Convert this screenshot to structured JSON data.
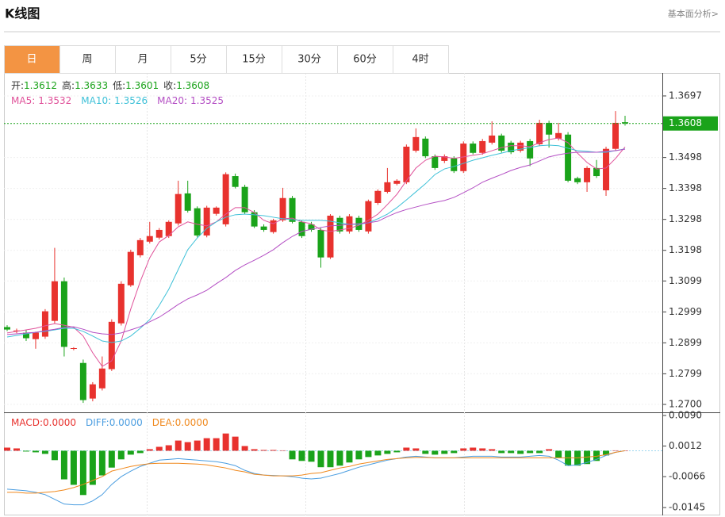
{
  "header": {
    "title": "K线图",
    "link": "基本面分析>"
  },
  "tabs": [
    "日",
    "周",
    "月",
    "5分",
    "15分",
    "30分",
    "60分",
    "4时"
  ],
  "active_tab": 0,
  "chart_data": [
    {
      "type": "candlestick",
      "up_color": "#e8322e",
      "down_color": "#1aa31a",
      "info_labels": [
        "开:",
        "高:",
        "低:",
        "收:"
      ],
      "ylim": [
        1.2677,
        1.3761
      ],
      "yticks": [
        1.3697,
        1.3498,
        1.3398,
        1.3298,
        1.3198,
        1.3099,
        1.2999,
        1.2899,
        1.2799,
        {
          "value": 1.27,
          "label": "1.2700"
        }
      ],
      "ohlc": [
        [
          1.295,
          1.2956,
          1.2937,
          1.2942
        ],
        [
          1.2937,
          1.2945,
          1.293,
          1.2939
        ],
        [
          1.2932,
          1.294,
          1.2905,
          1.2914
        ],
        [
          1.2911,
          1.2935,
          1.288,
          1.2932
        ],
        [
          1.2919,
          1.3008,
          1.2912,
          1.3001
        ],
        [
          1.297,
          1.3206,
          1.2962,
          1.3098
        ],
        [
          1.3098,
          1.311,
          1.2855,
          1.2886
        ],
        [
          1.288,
          1.2885,
          1.2875,
          1.2882
        ],
        [
          1.2834,
          1.2845,
          1.2705,
          1.2714
        ],
        [
          1.2719,
          1.2772,
          1.271,
          1.2765
        ],
        [
          1.2752,
          1.2855,
          1.2745,
          1.2816
        ],
        [
          1.2814,
          1.2975,
          1.2808,
          1.2967
        ],
        [
          1.2962,
          1.3098,
          1.2955,
          1.309
        ],
        [
          1.3085,
          1.32,
          1.308,
          1.3193
        ],
        [
          1.3182,
          1.3238,
          1.3175,
          1.3231
        ],
        [
          1.3226,
          1.329,
          1.322,
          1.3244
        ],
        [
          1.3239,
          1.327,
          1.3233,
          1.3264
        ],
        [
          1.3244,
          1.3295,
          1.3238,
          1.329
        ],
        [
          1.3285,
          1.3423,
          1.3278,
          1.338
        ],
        [
          1.3382,
          1.3423,
          1.332,
          1.3326
        ],
        [
          1.3334,
          1.334,
          1.324,
          1.3246
        ],
        [
          1.3246,
          1.3342,
          1.324,
          1.3336
        ],
        [
          1.3316,
          1.334,
          1.331,
          1.3336
        ],
        [
          1.3282,
          1.345,
          1.3275,
          1.3444
        ],
        [
          1.3438,
          1.3446,
          1.3398,
          1.3403
        ],
        [
          1.3403,
          1.341,
          1.3316,
          1.3321
        ],
        [
          1.3321,
          1.3328,
          1.327,
          1.3275
        ],
        [
          1.3275,
          1.3282,
          1.3258,
          1.3264
        ],
        [
          1.3257,
          1.33,
          1.3252,
          1.3295
        ],
        [
          1.3295,
          1.34,
          1.329,
          1.3367
        ],
        [
          1.3367,
          1.3374,
          1.3285,
          1.329
        ],
        [
          1.329,
          1.3296,
          1.3238,
          1.3244
        ],
        [
          1.3282,
          1.329,
          1.3258,
          1.3264
        ],
        [
          1.3264,
          1.327,
          1.3142,
          1.3175
        ],
        [
          1.3175,
          1.3315,
          1.317,
          1.331
        ],
        [
          1.3303,
          1.331,
          1.3252,
          1.3259
        ],
        [
          1.3259,
          1.3315,
          1.3252,
          1.3308
        ],
        [
          1.3303,
          1.331,
          1.3258,
          1.3264
        ],
        [
          1.3259,
          1.3362,
          1.3252,
          1.3357
        ],
        [
          1.3351,
          1.3395,
          1.3345,
          1.339
        ],
        [
          1.3387,
          1.3464,
          1.3382,
          1.3418
        ],
        [
          1.3413,
          1.3428,
          1.3408,
          1.3423
        ],
        [
          1.3418,
          1.354,
          1.3412,
          1.3533
        ],
        [
          1.352,
          1.3592,
          1.3514,
          1.3564
        ],
        [
          1.3559,
          1.3566,
          1.3496,
          1.3502
        ],
        [
          1.3502,
          1.3508,
          1.3458,
          1.3464
        ],
        [
          1.3487,
          1.3508,
          1.348,
          1.3502
        ],
        [
          1.3495,
          1.3502,
          1.3448,
          1.3454
        ],
        [
          1.3454,
          1.355,
          1.3448,
          1.3543
        ],
        [
          1.3543,
          1.355,
          1.3508,
          1.3513
        ],
        [
          1.3513,
          1.3558,
          1.3507,
          1.3551
        ],
        [
          1.3546,
          1.3615,
          1.354,
          1.3569
        ],
        [
          1.3569,
          1.3575,
          1.3514,
          1.352
        ],
        [
          1.3546,
          1.3552,
          1.3509,
          1.3515
        ],
        [
          1.352,
          1.3552,
          1.3514,
          1.3546
        ],
        [
          1.3551,
          1.3558,
          1.347,
          1.3495
        ],
        [
          1.3541,
          1.362,
          1.3535,
          1.361
        ],
        [
          1.361,
          1.3617,
          1.353,
          1.3572
        ],
        [
          1.3559,
          1.361,
          1.3553,
          1.3577
        ],
        [
          1.3572,
          1.358,
          1.3418,
          1.3423
        ],
        [
          1.3431,
          1.3436,
          1.3412,
          1.3418
        ],
        [
          1.3418,
          1.347,
          1.3387,
          1.3464
        ],
        [
          1.3464,
          1.349,
          1.3432,
          1.3438
        ],
        [
          1.3392,
          1.3533,
          1.3374,
          1.3526
        ],
        [
          1.3526,
          1.3648,
          1.352,
          1.361
        ],
        [
          1.3612,
          1.3633,
          1.3601,
          1.3608
        ]
      ],
      "ma": [
        {
          "name": "MA5:",
          "color": "#e0529a",
          "values": [
            1.2931,
            1.2936,
            1.2941,
            1.2946,
            1.2954,
            1.2961,
            1.2956,
            1.2949,
            1.2921,
            1.2867,
            1.2823,
            1.2841,
            1.2905,
            1.3008,
            1.3097,
            1.3174,
            1.3225,
            1.3246,
            1.3274,
            1.329,
            1.3282,
            1.3277,
            1.329,
            1.3315,
            1.3336,
            1.3336,
            1.332,
            1.3295,
            1.3284,
            1.33,
            1.3302,
            1.329,
            1.3284,
            1.3264,
            1.3259,
            1.3264,
            1.3269,
            1.3279,
            1.3295,
            1.3315,
            1.3346,
            1.3379,
            1.3423,
            1.3464,
            1.3489,
            1.3502,
            1.35,
            1.3495,
            1.35,
            1.3505,
            1.351,
            1.352,
            1.353,
            1.3536,
            1.3536,
            1.3533,
            1.3546,
            1.3556,
            1.3561,
            1.3546,
            1.3512,
            1.3482,
            1.3461,
            1.3464,
            1.3495,
            1.3532
          ]
        },
        {
          "name": "MA10:",
          "color": "#3fc1d8",
          "values": [
            1.2918,
            1.2923,
            1.2928,
            1.2933,
            1.2936,
            1.2941,
            1.2946,
            1.2946,
            1.2936,
            1.2921,
            1.2905,
            1.29,
            1.2905,
            1.2921,
            1.2946,
            1.2974,
            1.302,
            1.3072,
            1.3136,
            1.32,
            1.3238,
            1.3269,
            1.329,
            1.3305,
            1.3313,
            1.3315,
            1.3313,
            1.331,
            1.3305,
            1.33,
            1.3297,
            1.3295,
            1.3295,
            1.3295,
            1.3292,
            1.3287,
            1.3282,
            1.3282,
            1.3287,
            1.33,
            1.3315,
            1.3336,
            1.3361,
            1.3387,
            1.3413,
            1.3443,
            1.3461,
            1.3469,
            1.3479,
            1.3489,
            1.3497,
            1.3505,
            1.3512,
            1.352,
            1.3525,
            1.353,
            1.3536,
            1.3538,
            1.3536,
            1.3528,
            1.352,
            1.3518,
            1.3515,
            1.3515,
            1.352,
            1.3526
          ]
        },
        {
          "name": "MA20:",
          "color": "#b44fc4",
          "values": [
            1.2926,
            1.2928,
            1.2931,
            1.2933,
            1.2938,
            1.2943,
            1.2949,
            1.2951,
            1.2943,
            1.2933,
            1.2928,
            1.2926,
            1.2931,
            1.2941,
            1.2951,
            1.2967,
            1.2982,
            1.3002,
            1.3023,
            1.3041,
            1.3054,
            1.3069,
            1.309,
            1.311,
            1.3133,
            1.3151,
            1.3166,
            1.3182,
            1.32,
            1.3223,
            1.3243,
            1.3259,
            1.3266,
            1.3272,
            1.3277,
            1.3279,
            1.3282,
            1.3284,
            1.3287,
            1.3292,
            1.3307,
            1.332,
            1.333,
            1.3338,
            1.3346,
            1.3353,
            1.3359,
            1.3369,
            1.3384,
            1.34,
            1.3418,
            1.3431,
            1.3443,
            1.3456,
            1.3466,
            1.3474,
            1.3487,
            1.35,
            1.3507,
            1.3512,
            1.3515,
            1.3515,
            1.3515,
            1.3518,
            1.352,
            1.3525
          ]
        }
      ]
    },
    {
      "type": "macd",
      "up_color": "#e8322e",
      "down_color": "#1aa31a",
      "ylim": [
        -0.0165,
        0.0098
      ],
      "yticks": [
        {
          "value": 0.009,
          "label": "0.0090"
        },
        0.0012,
        -0.0066,
        -0.0145
      ],
      "series": [
        {
          "name": "MACD:",
          "value_label": "0.0000",
          "color": "#e8322e",
          "values": [
            0.0008,
            0.0006,
            -0.0002,
            -0.0004,
            -0.0008,
            -0.0024,
            -0.0073,
            -0.0087,
            -0.0113,
            -0.0087,
            -0.0063,
            -0.0043,
            -0.0022,
            -0.001,
            -0.0006,
            0.0004,
            0.001,
            0.0014,
            0.0026,
            0.0022,
            0.0026,
            0.0032,
            0.0032,
            0.0044,
            0.0036,
            0.0012,
            0.0004,
            0.0002,
            0.0002,
            0.0001,
            -0.0022,
            -0.0026,
            -0.0028,
            -0.0042,
            -0.0042,
            -0.0038,
            -0.003,
            -0.0022,
            -0.0016,
            -0.0012,
            -0.0008,
            -0.0004,
            0.0008,
            0.0006,
            -0.0008,
            -0.001,
            -0.0008,
            -0.0006,
            0.0006,
            0.0008,
            0.0006,
            0.0004,
            -0.0006,
            -0.0006,
            -0.0008,
            -0.0006,
            -0.0006,
            0.0004,
            -0.0018,
            -0.0038,
            -0.0038,
            -0.0034,
            -0.0026,
            -0.0012,
            0.0001,
            0
          ]
        },
        {
          "name": "DIFF:",
          "value_label": "0.0000",
          "color": "#4a9de0",
          "values": [
            -0.0098,
            -0.01,
            -0.0102,
            -0.0106,
            -0.0112,
            -0.0124,
            -0.0136,
            -0.0138,
            -0.0138,
            -0.0128,
            -0.0112,
            -0.0086,
            -0.0066,
            -0.0052,
            -0.004,
            -0.0032,
            -0.0024,
            -0.0022,
            -0.002,
            -0.0022,
            -0.0024,
            -0.0026,
            -0.0028,
            -0.0032,
            -0.0038,
            -0.005,
            -0.0058,
            -0.0062,
            -0.0063,
            -0.0064,
            -0.0066,
            -0.007,
            -0.0072,
            -0.007,
            -0.0064,
            -0.0058,
            -0.005,
            -0.0042,
            -0.0036,
            -0.003,
            -0.0024,
            -0.002,
            -0.0016,
            -0.0014,
            -0.0016,
            -0.0018,
            -0.0018,
            -0.0018,
            -0.0016,
            -0.0014,
            -0.0014,
            -0.0014,
            -0.0016,
            -0.0016,
            -0.0016,
            -0.0014,
            -0.0012,
            -0.0014,
            -0.0024,
            -0.0038,
            -0.0036,
            -0.003,
            -0.0022,
            -0.0012,
            -0.0004,
            0
          ]
        },
        {
          "name": "DEA:",
          "value_label": "0.0000",
          "color": "#f0891e",
          "values": [
            -0.0106,
            -0.0106,
            -0.0108,
            -0.0108,
            -0.0106,
            -0.0104,
            -0.01,
            -0.0094,
            -0.0086,
            -0.0076,
            -0.0066,
            -0.0052,
            -0.0046,
            -0.004,
            -0.0036,
            -0.0033,
            -0.0032,
            -0.0032,
            -0.0032,
            -0.0033,
            -0.0034,
            -0.0036,
            -0.004,
            -0.0044,
            -0.005,
            -0.0054,
            -0.006,
            -0.0062,
            -0.0064,
            -0.0064,
            -0.0064,
            -0.0062,
            -0.0058,
            -0.0056,
            -0.005,
            -0.0044,
            -0.004,
            -0.0034,
            -0.003,
            -0.0026,
            -0.0022,
            -0.002,
            -0.0018,
            -0.0017,
            -0.0017,
            -0.0018,
            -0.0018,
            -0.0018,
            -0.0018,
            -0.0018,
            -0.0018,
            -0.0018,
            -0.0018,
            -0.0018,
            -0.0018,
            -0.0018,
            -0.0018,
            -0.0018,
            -0.0018,
            -0.0018,
            -0.0018,
            -0.0016,
            -0.0014,
            -0.001,
            -0.0004,
            0
          ]
        }
      ]
    }
  ]
}
